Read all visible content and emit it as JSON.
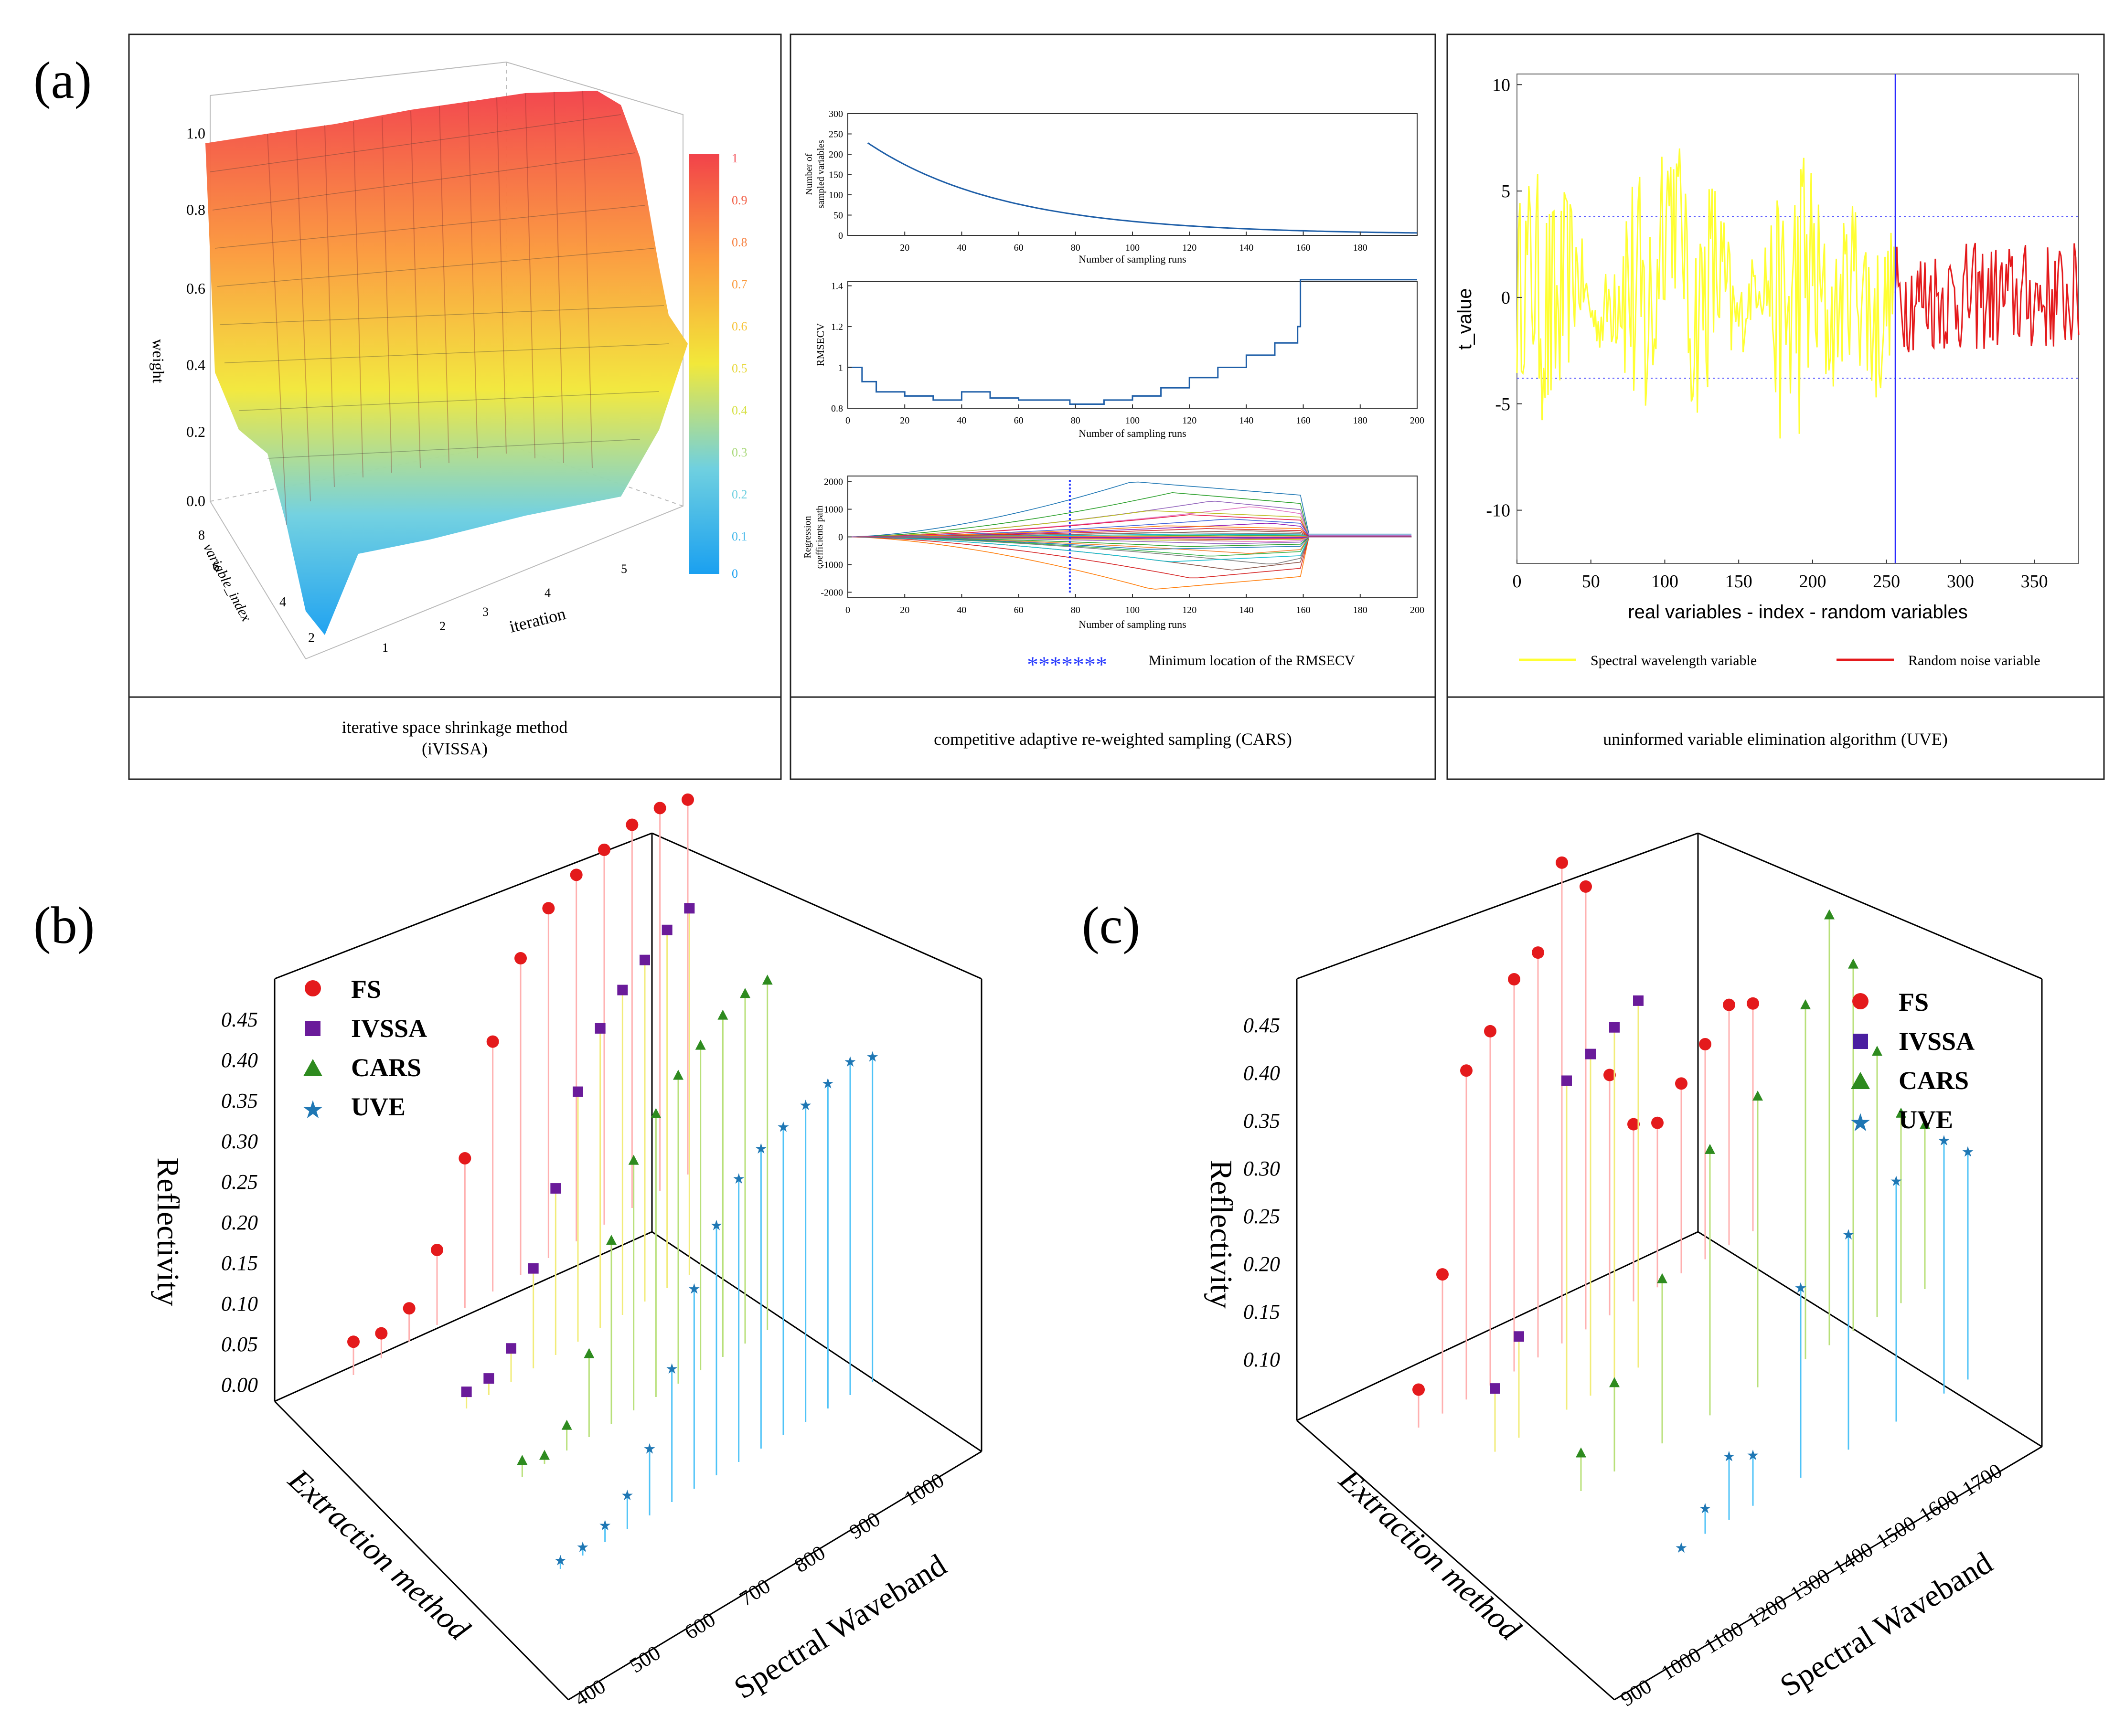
{
  "panel_labels": {
    "a": "(a)",
    "b": "(b)",
    "c": "(c)"
  },
  "captions": {
    "ivissa_line1": "iterative space shrinkage method",
    "ivissa_line2": "(iVISSA)",
    "cars": "competitive adaptive re-weighted sampling (CARS)",
    "uve": "uninformed variable elimination algorithm (UVE)"
  },
  "colors": {
    "fs": "#e41a1c",
    "ivssa": "#6a1b9a",
    "cars": "#2e8b1f",
    "uve": "#1f77b4",
    "uve_spectral": "#ffff33",
    "uve_noise": "#e41a1c",
    "cars_line": "#1f5fa8"
  },
  "chart_data": [
    {
      "id": "ivissa_surface",
      "type": "surface",
      "title": "",
      "zlabel": "weight",
      "xlabel": "iteration",
      "ylabel": "variable_index",
      "zticks": [
        "0.0",
        "0.2",
        "0.4",
        "0.6",
        "0.8",
        "1.0"
      ],
      "zlim": [
        0,
        1
      ],
      "xticks": [
        "1",
        "2",
        "3",
        "4",
        "5"
      ],
      "yticks": [
        "2",
        "4",
        "6",
        "8"
      ],
      "colorbar": {
        "range": [
          0,
          1
        ],
        "ticks": [
          "0",
          "0.1",
          "0.2",
          "0.3",
          "0.4",
          "0.5",
          "0.6",
          "0.7",
          "0.8",
          "0.9",
          "1"
        ]
      }
    },
    {
      "id": "cars_sampled_variables",
      "type": "line",
      "ylabel_line1": "Number of",
      "ylabel_line2": "sampled variables",
      "xlabel": "Number of sampling runs",
      "xlim": [
        0,
        200
      ],
      "ylim": [
        0,
        300
      ],
      "xticks": [
        "20",
        "40",
        "60",
        "80",
        "100",
        "120",
        "140",
        "160",
        "180"
      ],
      "yticks": [
        "0",
        "50",
        "100",
        "150",
        "200",
        "250",
        "300"
      ],
      "x": [
        7,
        20,
        40,
        60,
        80,
        100,
        120,
        140,
        160,
        180,
        200
      ],
      "y": [
        228,
        176,
        121,
        82,
        55,
        36,
        24,
        15,
        9,
        5,
        2
      ]
    },
    {
      "id": "cars_rmsecv",
      "type": "line",
      "ylabel": "RMSECV",
      "xlabel": "Number of sampling runs",
      "xlim": [
        0,
        200
      ],
      "ylim": [
        0.8,
        1.42
      ],
      "xticks": [
        "0",
        "20",
        "40",
        "60",
        "80",
        "100",
        "120",
        "140",
        "160",
        "180",
        "200"
      ],
      "yticks": [
        "0.8",
        "1",
        "1.2",
        "1.4"
      ],
      "x": [
        0,
        5,
        10,
        20,
        30,
        40,
        50,
        60,
        70,
        78,
        90,
        100,
        110,
        120,
        130,
        140,
        150,
        158,
        159,
        170,
        180,
        200
      ],
      "y": [
        1.0,
        0.93,
        0.88,
        0.86,
        0.84,
        0.88,
        0.85,
        0.84,
        0.84,
        0.82,
        0.84,
        0.86,
        0.9,
        0.95,
        1.0,
        1.06,
        1.12,
        1.2,
        1.43,
        1.43,
        1.43,
        1.43
      ]
    },
    {
      "id": "cars_coefficients",
      "type": "line",
      "ylabel_line1": "Regression",
      "ylabel_line2": "coefficients path",
      "xlabel": "Number of sampling runs",
      "xlim": [
        0,
        200
      ],
      "ylim": [
        -2200,
        2200
      ],
      "xticks": [
        "0",
        "20",
        "40",
        "60",
        "80",
        "100",
        "120",
        "140",
        "160",
        "180",
        "200"
      ],
      "yticks": [
        "2000",
        "1000",
        "0",
        "-1000",
        "-2000"
      ],
      "min_run": 78,
      "legend_marker": "*******",
      "legend_label": "Minimum location of the RMSECV",
      "amplitudes": [
        2000,
        -1900,
        1600,
        -1500,
        1300,
        -1200,
        1100,
        -1000,
        950,
        -900,
        800,
        -700,
        650,
        -600,
        500,
        -450,
        400,
        -350,
        300,
        -250,
        220,
        -180,
        150,
        -120,
        100,
        -80,
        60,
        -40,
        30,
        -20
      ]
    },
    {
      "id": "uve_t_values",
      "type": "line",
      "ylabel": "t_value",
      "xlabel": "real variables - index - random variables",
      "xlim": [
        0,
        380
      ],
      "ylim": [
        -12.5,
        10.5
      ],
      "xticks": [
        "0",
        "50",
        "100",
        "150",
        "200",
        "250",
        "300",
        "350"
      ],
      "yticks": [
        "10",
        "5",
        "0",
        "-5",
        "-10"
      ],
      "threshold": 3.8,
      "split_index": 256,
      "series": [
        {
          "name": "Spectral wavelength variable",
          "x_range": [
            0,
            256
          ]
        },
        {
          "name": "Random noise variable",
          "x_range": [
            256,
            380
          ]
        }
      ]
    },
    {
      "id": "vnir_selection",
      "type": "scatter3d",
      "zlabel": "Reflectivity",
      "xlabel": "Spectral Waveband",
      "ylabel": "Extraction method",
      "zticks": [
        "0.00",
        "0.05",
        "0.10",
        "0.15",
        "0.20",
        "0.25",
        "0.30",
        "0.35",
        "0.40",
        "0.45"
      ],
      "xticks": [
        "400",
        "500",
        "600",
        "700",
        "800",
        "900",
        "1000"
      ],
      "series": [
        {
          "name": "FS",
          "x": [
            400,
            450,
            500,
            550,
            600,
            650,
            700,
            750,
            800,
            850,
            900,
            950,
            1000
          ],
          "y": [
            0.04,
            0.03,
            0.04,
            0.09,
            0.18,
            0.3,
            0.38,
            0.42,
            0.44,
            0.45,
            0.46,
            0.46,
            0.45
          ]
        },
        {
          "name": "IVSSA",
          "x": [
            500,
            540,
            580,
            620,
            660,
            700,
            740,
            780,
            820,
            860,
            900
          ],
          "y": [
            0.02,
            0.02,
            0.04,
            0.12,
            0.2,
            0.3,
            0.36,
            0.39,
            0.41,
            0.43,
            0.44
          ]
        },
        {
          "name": "CARS",
          "x": [
            480,
            520,
            560,
            600,
            640,
            680,
            720,
            760,
            800,
            840,
            880,
            920
          ],
          "y": [
            0.02,
            0.01,
            0.03,
            0.1,
            0.22,
            0.3,
            0.34,
            0.37,
            0.39,
            0.41,
            0.42,
            0.42
          ]
        },
        {
          "name": "UVE",
          "x": [
            420,
            460,
            500,
            540,
            580,
            620,
            660,
            700,
            740,
            780,
            820,
            860,
            900,
            940,
            980
          ],
          "y": [
            0.01,
            0.01,
            0.02,
            0.04,
            0.08,
            0.16,
            0.24,
            0.3,
            0.34,
            0.36,
            0.37,
            0.38,
            0.39,
            0.4,
            0.39
          ]
        }
      ]
    },
    {
      "id": "swir_selection",
      "type": "scatter3d",
      "zlabel": "Reflectivity",
      "xlabel": "Spectral Waveband",
      "ylabel": "Extraction method",
      "zticks": [
        "0.10",
        "0.15",
        "0.20",
        "0.25",
        "0.30",
        "0.35",
        "0.40",
        "0.45"
      ],
      "xticks": [
        "900",
        "1000",
        "1100",
        "1200",
        "1300",
        "1400",
        "1500",
        "1600",
        "1700"
      ],
      "series": [
        {
          "name": "FS",
          "x": [
            900,
            950,
            1000,
            1050,
            1100,
            1150,
            1200,
            1250,
            1300,
            1350,
            1400,
            1450,
            1500,
            1550,
            1600
          ],
          "y": [
            0.1,
            0.18,
            0.33,
            0.35,
            0.38,
            0.39,
            0.45,
            0.42,
            0.26,
            0.21,
            0.2,
            0.22,
            0.24,
            0.26,
            0.25
          ]
        },
        {
          "name": "IVSSA",
          "x": [
            950,
            1000,
            1100,
            1150,
            1200,
            1250
          ],
          "y": [
            0.12,
            0.15,
            0.33,
            0.34,
            0.35,
            0.36
          ]
        },
        {
          "name": "CARS",
          "x": [
            980,
            1050,
            1150,
            1250,
            1350,
            1450,
            1500,
            1550,
            1600,
            1650,
            1700
          ],
          "y": [
            0.1,
            0.14,
            0.2,
            0.28,
            0.3,
            0.35,
            0.41,
            0.36,
            0.28,
            0.22,
            0.2
          ]
        },
        {
          "name": "UVE",
          "x": [
            1050,
            1100,
            1150,
            1200,
            1300,
            1400,
            1500,
            1600,
            1650
          ],
          "y": [
            0.07,
            0.09,
            0.12,
            0.11,
            0.22,
            0.24,
            0.26,
            0.27,
            0.25
          ]
        }
      ]
    }
  ]
}
